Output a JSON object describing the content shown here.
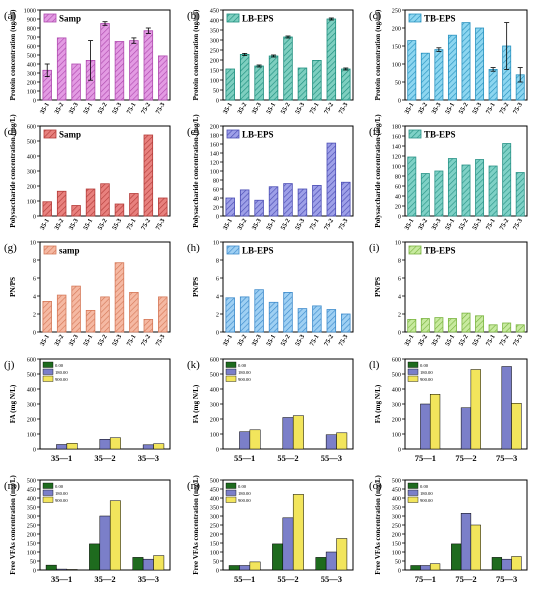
{
  "chart_data": [
    {
      "id": "a",
      "panel_label": "(a)",
      "type": "bar",
      "title": "Samp",
      "ylabel": "Protein concentration (ug/ml)",
      "ylim": [
        0,
        1000
      ],
      "yticks": [
        0,
        100,
        200,
        300,
        400,
        500,
        600,
        700,
        800,
        900,
        1000
      ],
      "categories": [
        "35-1",
        "35-2",
        "35-3",
        "55-1",
        "55-2",
        "55-3",
        "75-1",
        "75-2",
        "75-3"
      ],
      "values": [
        330,
        690,
        400,
        440,
        850,
        650,
        660,
        770,
        490
      ],
      "errors": [
        70,
        0,
        0,
        220,
        20,
        0,
        30,
        30,
        0
      ],
      "color": "#e39be3",
      "hatch": "#b04cb0"
    },
    {
      "id": "b",
      "panel_label": "(b)",
      "type": "bar",
      "title": "LB-EPS",
      "ylabel": "Protein concentration (ug/ml)",
      "ylim": [
        0,
        450
      ],
      "yticks": [
        0,
        50,
        100,
        150,
        200,
        250,
        300,
        350,
        400,
        450
      ],
      "categories": [
        "35-1",
        "35-2",
        "35-3",
        "55-1",
        "55-2",
        "55-3",
        "75-1",
        "75-2",
        "75-3"
      ],
      "values": [
        155,
        228,
        170,
        220,
        315,
        160,
        198,
        405,
        155
      ],
      "errors": [
        0,
        5,
        5,
        5,
        5,
        0,
        0,
        5,
        5
      ],
      "color": "#7ecfc0",
      "hatch": "#1f8f7f"
    },
    {
      "id": "c",
      "panel_label": "(c)",
      "type": "bar",
      "title": "TB-EPS",
      "ylabel": "Protein concentration (ug/ml)",
      "ylim": [
        0,
        250
      ],
      "yticks": [
        0,
        50,
        100,
        150,
        200,
        250
      ],
      "categories": [
        "35-1",
        "35-2",
        "35-3",
        "55-1",
        "55-2",
        "55-3",
        "75-1",
        "75-2",
        "75-3"
      ],
      "values": [
        165,
        130,
        140,
        180,
        215,
        200,
        85,
        150,
        70
      ],
      "errors": [
        0,
        0,
        5,
        0,
        0,
        0,
        5,
        65,
        20
      ],
      "color": "#8dd6f0",
      "hatch": "#2a93c0"
    },
    {
      "id": "d",
      "panel_label": "(d)",
      "type": "bar",
      "title": "Samp",
      "ylabel": "Polysaccharide concentration (mg/L)",
      "ylim": [
        0,
        600
      ],
      "yticks": [
        0,
        100,
        200,
        300,
        400,
        500,
        600
      ],
      "categories": [
        "35-1",
        "35-2",
        "35-3",
        "55-1",
        "55-2",
        "55-3",
        "75-1",
        "75-2",
        "75-3"
      ],
      "values": [
        95,
        165,
        70,
        180,
        215,
        80,
        150,
        540,
        120
      ],
      "errors": [
        0,
        0,
        0,
        0,
        0,
        0,
        0,
        0,
        0
      ],
      "color": "#e8817e",
      "hatch": "#b53d3a"
    },
    {
      "id": "e",
      "panel_label": "(e)",
      "type": "bar",
      "title": "LB-EPS",
      "ylabel": "Polysaccharide concentration (mg/L)",
      "ylim": [
        0,
        200
      ],
      "yticks": [
        0,
        20,
        40,
        60,
        80,
        100,
        120,
        140,
        160,
        180,
        200
      ],
      "categories": [
        "35-1",
        "35-2",
        "35-3",
        "55-1",
        "55-2",
        "55-3",
        "75-1",
        "75-2",
        "75-3"
      ],
      "values": [
        40,
        58,
        35,
        65,
        72,
        60,
        68,
        162,
        75
      ],
      "errors": [
        0,
        0,
        0,
        0,
        0,
        0,
        0,
        0,
        0
      ],
      "color": "#9ea0e8",
      "hatch": "#4c4eb5"
    },
    {
      "id": "f",
      "panel_label": "(f)",
      "type": "bar",
      "title": "TB-EPS",
      "ylabel": "Polysaccharide concentration (mg/L)",
      "ylim": [
        0,
        180
      ],
      "yticks": [
        0,
        20,
        40,
        60,
        80,
        100,
        120,
        140,
        160,
        180
      ],
      "categories": [
        "35-1",
        "35-2",
        "35-3",
        "55-1",
        "55-2",
        "55-3",
        "75-1",
        "75-2",
        "75-3"
      ],
      "values": [
        118,
        85,
        90,
        115,
        102,
        113,
        100,
        145,
        87
      ],
      "errors": [
        0,
        0,
        0,
        0,
        0,
        0,
        0,
        0,
        0
      ],
      "color": "#7fd1c6",
      "hatch": "#2b9488"
    },
    {
      "id": "g",
      "panel_label": "(g)",
      "type": "bar",
      "title": "samp",
      "ylabel": "PN/PS",
      "ylim": [
        0,
        10
      ],
      "yticks": [
        0,
        2,
        4,
        6,
        8,
        10
      ],
      "categories": [
        "35-1",
        "35-2",
        "35-3",
        "55-1",
        "55-2",
        "55-3",
        "75-1",
        "75-2",
        "75-3"
      ],
      "values": [
        3.4,
        4.1,
        5.1,
        2.4,
        3.9,
        7.7,
        4.4,
        1.4,
        3.9
      ],
      "errors": [
        0,
        0,
        0,
        0,
        0,
        0,
        0,
        0,
        0
      ],
      "color": "#f5b9a3",
      "hatch": "#d67a5a"
    },
    {
      "id": "h",
      "panel_label": "(h)",
      "type": "bar",
      "title": "LB-EPS",
      "ylabel": "PN/PS",
      "ylim": [
        0,
        10
      ],
      "yticks": [
        0,
        2,
        4,
        6,
        8,
        10
      ],
      "categories": [
        "35-1",
        "35-2",
        "35-3",
        "55-1",
        "55-2",
        "55-3",
        "75-1",
        "75-2",
        "75-3"
      ],
      "values": [
        3.8,
        3.9,
        4.7,
        3.3,
        4.4,
        2.6,
        2.9,
        2.5,
        2.0
      ],
      "errors": [
        0,
        0,
        0,
        0,
        0,
        0,
        0,
        0,
        0
      ],
      "color": "#9fd0f3",
      "hatch": "#3f8ccc"
    },
    {
      "id": "i",
      "panel_label": "(i)",
      "type": "bar",
      "title": "TB-EPS",
      "ylabel": "PN/PS",
      "ylim": [
        0,
        10
      ],
      "yticks": [
        0,
        2,
        4,
        6,
        8,
        10
      ],
      "categories": [
        "35-1",
        "35-2",
        "35-3",
        "55-1",
        "55-2",
        "55-3",
        "75-1",
        "75-2",
        "75-3"
      ],
      "values": [
        1.4,
        1.5,
        1.6,
        1.5,
        2.1,
        1.8,
        0.8,
        1.0,
        0.8
      ],
      "errors": [
        0,
        0,
        0,
        0,
        0,
        0,
        0,
        0,
        0
      ],
      "color": "#c8eaa0",
      "hatch": "#7bb541"
    },
    {
      "id": "j",
      "panel_label": "(j)",
      "type": "bar",
      "ylabel": "FA (mg N/L)",
      "ylim": [
        0,
        600
      ],
      "yticks": [
        0,
        100,
        200,
        300,
        400,
        500,
        600
      ],
      "categories": [
        "35—1",
        "35—2",
        "35—3"
      ],
      "series": [
        {
          "name": "0.00",
          "values": [
            0,
            0,
            0
          ],
          "color": "#1e6b1e"
        },
        {
          "name": "180.00",
          "values": [
            30,
            65,
            28
          ],
          "color": "#7b7fc9"
        },
        {
          "name": "900.00",
          "values": [
            38,
            75,
            35
          ],
          "color": "#f2e55c"
        }
      ]
    },
    {
      "id": "k",
      "panel_label": "(k)",
      "type": "bar",
      "ylabel": "FA (mg N/L)",
      "ylim": [
        0,
        600
      ],
      "yticks": [
        0,
        100,
        200,
        300,
        400,
        500,
        600
      ],
      "categories": [
        "55—1",
        "55—2",
        "55—3"
      ],
      "series": [
        {
          "name": "0.00",
          "values": [
            0,
            0,
            0
          ],
          "color": "#1e6b1e"
        },
        {
          "name": "180.00",
          "values": [
            115,
            210,
            95
          ],
          "color": "#7b7fc9"
        },
        {
          "name": "900.00",
          "values": [
            128,
            222,
            108
          ],
          "color": "#f2e55c"
        }
      ]
    },
    {
      "id": "l",
      "panel_label": "(l)",
      "type": "bar",
      "ylabel": "FA (mg N/L)",
      "ylim": [
        0,
        600
      ],
      "yticks": [
        0,
        100,
        200,
        300,
        400,
        500,
        600
      ],
      "categories": [
        "75—1",
        "75—2",
        "75—3"
      ],
      "series": [
        {
          "name": "0.00",
          "values": [
            0,
            0,
            0
          ],
          "color": "#1e6b1e"
        },
        {
          "name": "180.00",
          "values": [
            300,
            275,
            550
          ],
          "color": "#7b7fc9"
        },
        {
          "name": "900.00",
          "values": [
            365,
            530,
            305
          ],
          "color": "#f2e55c"
        }
      ]
    },
    {
      "id": "m",
      "panel_label": "(m)",
      "type": "bar",
      "ylabel": "Free VFAs concentration (mg/L)",
      "ylim": [
        0,
        500
      ],
      "yticks": [
        0,
        50,
        100,
        150,
        200,
        250,
        300,
        350,
        400,
        450,
        500
      ],
      "categories": [
        "35—1",
        "35—2",
        "35—3"
      ],
      "series": [
        {
          "name": "0.00",
          "values": [
            27,
            145,
            70
          ],
          "color": "#1e6b1e"
        },
        {
          "name": "180.00",
          "values": [
            5,
            300,
            60
          ],
          "color": "#7b7fc9"
        },
        {
          "name": "900.00",
          "values": [
            3,
            385,
            80
          ],
          "color": "#f2e55c"
        }
      ]
    },
    {
      "id": "n",
      "panel_label": "(n)",
      "type": "bar",
      "ylabel": "Free VFAs concentration (mg/L)",
      "ylim": [
        0,
        500
      ],
      "yticks": [
        0,
        50,
        100,
        150,
        200,
        250,
        300,
        350,
        400,
        450,
        500
      ],
      "categories": [
        "55—1",
        "55—2",
        "55—3"
      ],
      "series": [
        {
          "name": "0.00",
          "values": [
            25,
            145,
            70
          ],
          "color": "#1e6b1e"
        },
        {
          "name": "180.00",
          "values": [
            25,
            290,
            100
          ],
          "color": "#7b7fc9"
        },
        {
          "name": "900.00",
          "values": [
            45,
            420,
            175
          ],
          "color": "#f2e55c"
        }
      ]
    },
    {
      "id": "o",
      "panel_label": "(o)",
      "type": "bar",
      "ylabel": "Free VFAs concentration (mg/L)",
      "ylim": [
        0,
        500
      ],
      "yticks": [
        0,
        50,
        100,
        150,
        200,
        250,
        300,
        350,
        400,
        450,
        500
      ],
      "categories": [
        "75—1",
        "75—2",
        "75—3"
      ],
      "series": [
        {
          "name": "0.00",
          "values": [
            25,
            145,
            70
          ],
          "color": "#1e6b1e"
        },
        {
          "name": "180.00",
          "values": [
            25,
            315,
            60
          ],
          "color": "#7b7fc9"
        },
        {
          "name": "900.00",
          "values": [
            35,
            250,
            75
          ],
          "color": "#f2e55c"
        }
      ]
    }
  ]
}
